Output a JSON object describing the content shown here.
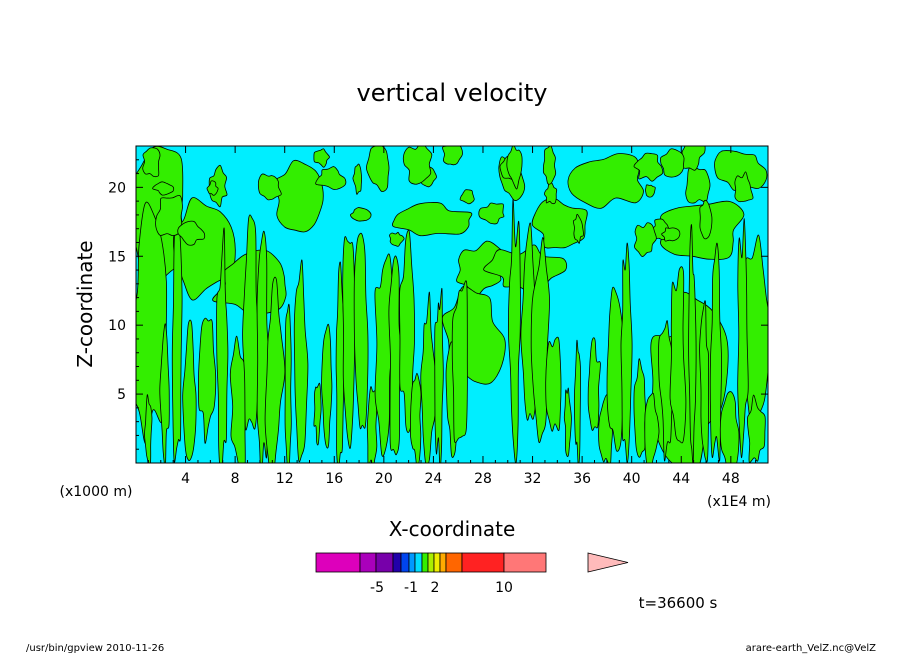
{
  "chart_data": {
    "type": "heatmap",
    "title": "vertical velocity",
    "xlabel": "X-coordinate",
    "ylabel": "Z-coordinate",
    "x_ticks": [
      "4",
      "8",
      "12",
      "16",
      "20",
      "24",
      "28",
      "32",
      "36",
      "40",
      "44",
      "48"
    ],
    "y_ticks": [
      "5",
      "10",
      "15",
      "20"
    ],
    "x_unit_left": "(x1000 m)",
    "x_unit_right": "(x1E4 m)",
    "xlim": [
      0,
      51
    ],
    "ylim": [
      0,
      23
    ],
    "colors": {
      "positive": "#33ee00",
      "near_zero": "#00eeff",
      "contour": "#000000"
    },
    "colorbar": {
      "colors": [
        "#dd00bb",
        "#aa00bb",
        "#7700aa",
        "#2200aa",
        "#0044ee",
        "#0099ff",
        "#00ddff",
        "#33ee00",
        "#aaee00",
        "#eeee00",
        "#ffaa00",
        "#ff6600",
        "#ff2222",
        "#ff7777",
        "#ffbbbb"
      ],
      "labels": [
        "-5",
        "-1",
        "2",
        "10"
      ]
    },
    "time_label": "t=36600 s"
  },
  "footer": {
    "left": "/usr/bin/gpview   2010-11-26",
    "right": "arare-earth_VelZ.nc@VelZ"
  }
}
